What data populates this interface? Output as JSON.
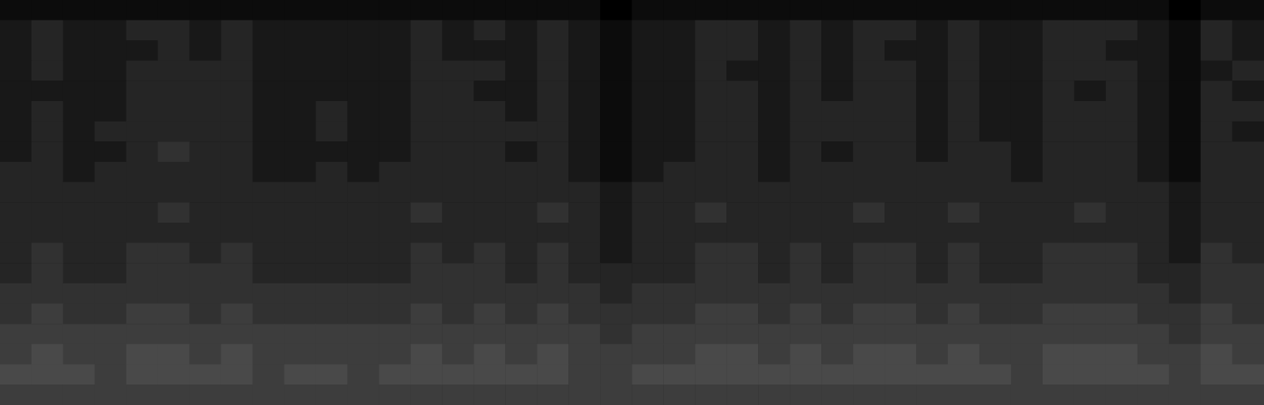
{
  "chart_data": {
    "type": "heatmap",
    "tick_labels": false,
    "grid": false,
    "zlim": [
      0,
      10
    ],
    "cells": [
      [
        1,
        1,
        1,
        1,
        1,
        1,
        1,
        1,
        1,
        1,
        1,
        1,
        1,
        1,
        1,
        1,
        1,
        1,
        1,
        0,
        1,
        1,
        1,
        1,
        1,
        1,
        1,
        1,
        1,
        1,
        1,
        1,
        1,
        1,
        1,
        1,
        1,
        0,
        1,
        1
      ],
      [
        2,
        3,
        2,
        2,
        3,
        3,
        2,
        3,
        2,
        2,
        2,
        2,
        2,
        3,
        2,
        3,
        2,
        3,
        2,
        1,
        2,
        2,
        3,
        3,
        2,
        3,
        2,
        3,
        3,
        2,
        3,
        2,
        2,
        3,
        3,
        3,
        2,
        1,
        3,
        2
      ],
      [
        2,
        3,
        2,
        2,
        2,
        3,
        2,
        3,
        2,
        2,
        2,
        2,
        2,
        3,
        2,
        2,
        2,
        3,
        2,
        1,
        2,
        2,
        3,
        3,
        2,
        3,
        2,
        3,
        2,
        2,
        3,
        2,
        2,
        3,
        3,
        2,
        2,
        1,
        3,
        2
      ],
      [
        2,
        3,
        2,
        2,
        3,
        3,
        3,
        3,
        2,
        2,
        2,
        2,
        2,
        3,
        3,
        3,
        2,
        3,
        2,
        1,
        2,
        2,
        3,
        2,
        2,
        3,
        2,
        3,
        3,
        2,
        3,
        2,
        2,
        3,
        3,
        3,
        2,
        1,
        2,
        3
      ],
      [
        2,
        2,
        2,
        2,
        3,
        3,
        3,
        3,
        2,
        2,
        2,
        2,
        2,
        3,
        3,
        2,
        2,
        3,
        2,
        1,
        2,
        2,
        3,
        3,
        2,
        3,
        2,
        3,
        3,
        2,
        3,
        2,
        2,
        3,
        2,
        3,
        2,
        1,
        3,
        2
      ],
      [
        2,
        3,
        2,
        2,
        3,
        3,
        3,
        3,
        2,
        2,
        3,
        2,
        2,
        3,
        3,
        3,
        2,
        3,
        2,
        1,
        2,
        2,
        3,
        3,
        2,
        3,
        3,
        3,
        3,
        2,
        3,
        2,
        2,
        3,
        3,
        3,
        2,
        1,
        3,
        3
      ],
      [
        2,
        3,
        2,
        3,
        3,
        3,
        3,
        3,
        2,
        2,
        3,
        2,
        2,
        3,
        3,
        3,
        3,
        3,
        2,
        1,
        2,
        2,
        3,
        3,
        2,
        3,
        3,
        3,
        3,
        2,
        3,
        2,
        2,
        3,
        3,
        3,
        2,
        1,
        3,
        2
      ],
      [
        2,
        3,
        2,
        2,
        3,
        4,
        3,
        3,
        2,
        2,
        2,
        2,
        2,
        3,
        3,
        3,
        2,
        3,
        2,
        1,
        2,
        2,
        3,
        3,
        2,
        3,
        2,
        3,
        3,
        2,
        3,
        3,
        2,
        3,
        3,
        3,
        2,
        1,
        3,
        3
      ],
      [
        3,
        3,
        2,
        3,
        3,
        3,
        3,
        3,
        2,
        2,
        3,
        2,
        3,
        3,
        3,
        3,
        3,
        3,
        2,
        1,
        2,
        3,
        3,
        3,
        2,
        3,
        3,
        3,
        3,
        3,
        3,
        3,
        2,
        3,
        3,
        3,
        2,
        1,
        3,
        3
      ],
      [
        3,
        3,
        3,
        3,
        3,
        3,
        3,
        3,
        3,
        3,
        3,
        3,
        3,
        3,
        3,
        3,
        3,
        3,
        3,
        2,
        3,
        3,
        3,
        3,
        3,
        3,
        3,
        3,
        3,
        3,
        3,
        3,
        3,
        3,
        3,
        3,
        3,
        2,
        3,
        3
      ],
      [
        3,
        3,
        3,
        3,
        3,
        4,
        3,
        3,
        3,
        3,
        3,
        3,
        3,
        4,
        3,
        3,
        3,
        4,
        3,
        2,
        3,
        3,
        4,
        3,
        3,
        3,
        3,
        4,
        3,
        3,
        4,
        3,
        3,
        3,
        4,
        3,
        3,
        2,
        3,
        3
      ],
      [
        3,
        3,
        3,
        3,
        3,
        3,
        3,
        3,
        3,
        3,
        3,
        3,
        3,
        3,
        3,
        3,
        3,
        3,
        3,
        2,
        3,
        3,
        3,
        3,
        3,
        3,
        3,
        3,
        3,
        3,
        3,
        3,
        3,
        3,
        3,
        3,
        3,
        2,
        3,
        3
      ],
      [
        3,
        4,
        3,
        3,
        4,
        4,
        3,
        4,
        3,
        3,
        3,
        3,
        3,
        4,
        3,
        4,
        3,
        4,
        3,
        2,
        3,
        3,
        4,
        4,
        3,
        4,
        3,
        4,
        4,
        3,
        4,
        3,
        3,
        4,
        4,
        4,
        3,
        2,
        4,
        3
      ],
      [
        3,
        4,
        3,
        3,
        4,
        4,
        4,
        4,
        3,
        3,
        3,
        3,
        3,
        4,
        4,
        4,
        3,
        4,
        3,
        3,
        3,
        3,
        4,
        4,
        3,
        4,
        3,
        4,
        4,
        3,
        4,
        3,
        3,
        4,
        4,
        4,
        3,
        3,
        4,
        4
      ],
      [
        4,
        4,
        4,
        4,
        4,
        4,
        4,
        4,
        4,
        4,
        4,
        4,
        4,
        4,
        4,
        4,
        4,
        4,
        4,
        3,
        4,
        4,
        4,
        4,
        4,
        4,
        4,
        4,
        4,
        4,
        4,
        4,
        4,
        4,
        4,
        4,
        4,
        3,
        4,
        4
      ],
      [
        4,
        5,
        4,
        4,
        5,
        5,
        4,
        5,
        4,
        4,
        4,
        4,
        4,
        5,
        4,
        5,
        4,
        5,
        4,
        4,
        4,
        4,
        5,
        5,
        4,
        5,
        4,
        5,
        5,
        4,
        5,
        4,
        4,
        5,
        5,
        5,
        4,
        4,
        5,
        4
      ],
      [
        5,
        5,
        5,
        5,
        5,
        5,
        5,
        5,
        5,
        5,
        5,
        5,
        5,
        5,
        5,
        5,
        5,
        5,
        5,
        4,
        5,
        5,
        5,
        5,
        5,
        5,
        5,
        5,
        5,
        5,
        5,
        5,
        5,
        5,
        5,
        5,
        5,
        4,
        5,
        5
      ],
      [
        5,
        6,
        5,
        5,
        6,
        6,
        5,
        6,
        5,
        5,
        5,
        5,
        5,
        6,
        5,
        6,
        5,
        6,
        5,
        5,
        5,
        5,
        6,
        6,
        5,
        6,
        5,
        6,
        6,
        5,
        6,
        5,
        5,
        6,
        6,
        6,
        5,
        5,
        6,
        5
      ],
      [
        6,
        6,
        6,
        5,
        6,
        6,
        6,
        6,
        5,
        6,
        6,
        5,
        6,
        6,
        6,
        6,
        6,
        6,
        5,
        5,
        6,
        6,
        6,
        6,
        6,
        6,
        6,
        6,
        6,
        6,
        6,
        6,
        5,
        6,
        6,
        6,
        6,
        5,
        6,
        6
      ],
      [
        5,
        5,
        5,
        5,
        5,
        5,
        5,
        5,
        5,
        5,
        5,
        5,
        5,
        5,
        5,
        5,
        5,
        5,
        5,
        5,
        5,
        5,
        5,
        5,
        5,
        5,
        5,
        5,
        5,
        5,
        5,
        5,
        5,
        5,
        5,
        5,
        5,
        5,
        5,
        5
      ]
    ]
  }
}
